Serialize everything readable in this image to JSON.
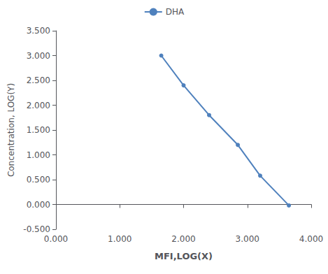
{
  "chart_data": {
    "type": "line",
    "x": [
      1.65,
      2.0,
      2.4,
      2.85,
      3.2,
      3.65
    ],
    "series": [
      {
        "name": "DHA",
        "color": "#4f81bd",
        "marker": "circle",
        "values": [
          3.0,
          2.4,
          1.8,
          1.2,
          0.58,
          -0.02
        ]
      }
    ],
    "xlabel": "MFI,LOG(X)",
    "ylabel": "Concentration, LOG(Y)",
    "xlim": [
      0.0,
      4.0
    ],
    "ylim": [
      -0.5,
      3.5
    ],
    "xticks": [
      {
        "value": 0,
        "label": "0.000"
      },
      {
        "value": 1,
        "label": "1.000"
      },
      {
        "value": 2,
        "label": "2.000"
      },
      {
        "value": 3,
        "label": "3.000"
      },
      {
        "value": 4,
        "label": "4.000"
      }
    ],
    "yticks": [
      {
        "value": -0.5,
        "label": "-0.500"
      },
      {
        "value": 0,
        "label": "0.000"
      },
      {
        "value": 0.5,
        "label": "0.500"
      },
      {
        "value": 1,
        "label": "1.000"
      },
      {
        "value": 1.5,
        "label": "1.500"
      },
      {
        "value": 2,
        "label": "2.000"
      },
      {
        "value": 2.5,
        "label": "2.500"
      },
      {
        "value": 3,
        "label": "3.000"
      },
      {
        "value": 3.5,
        "label": "3.500"
      }
    ],
    "grid": false,
    "legend": "top"
  }
}
